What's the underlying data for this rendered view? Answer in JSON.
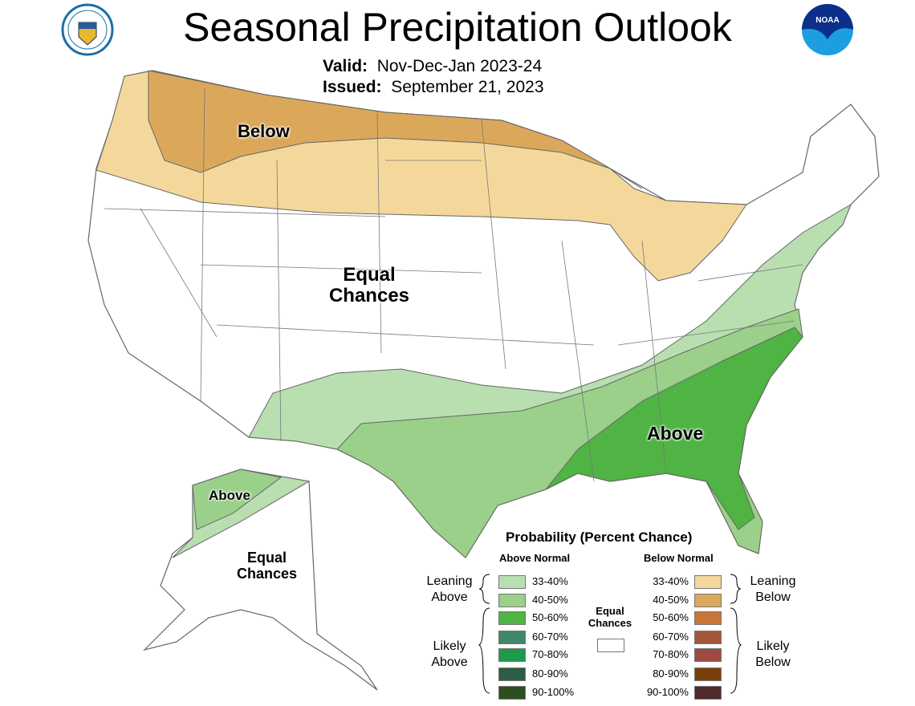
{
  "header": {
    "title": "Seasonal Precipitation Outlook",
    "valid_label": "Valid:",
    "valid_value": "Nov-Dec-Jan 2023-24",
    "issued_label": "Issued:",
    "issued_value": "September 21, 2023",
    "left_logo": "department-of-commerce-seal",
    "right_logo": "noaa-logo",
    "noaa_text": "NOAA"
  },
  "map": {
    "labels": {
      "below": "Below",
      "equal_1": "Equal",
      "equal_2": "Chances",
      "above": "Above",
      "ak_above": "Above",
      "ak_equal_1": "Equal",
      "ak_equal_2": "Chances"
    }
  },
  "legend": {
    "title": "Probability (Percent Chance)",
    "above_header": "Above Normal",
    "below_header": "Below Normal",
    "equal_1": "Equal",
    "equal_2": "Chances",
    "equal_color": "#ffffff",
    "leaning_above_1": "Leaning",
    "leaning_above_2": "Above",
    "likely_above_1": "Likely",
    "likely_above_2": "Above",
    "leaning_below_1": "Leaning",
    "leaning_below_2": "Below",
    "likely_below_1": "Likely",
    "likely_below_2": "Below",
    "above": [
      {
        "range": "33-40%",
        "color": "#b9dfb1"
      },
      {
        "range": "40-50%",
        "color": "#9bd08b"
      },
      {
        "range": "50-60%",
        "color": "#4fb443"
      },
      {
        "range": "60-70%",
        "color": "#3e876b"
      },
      {
        "range": "70-80%",
        "color": "#1e9a4c"
      },
      {
        "range": "80-90%",
        "color": "#2c5d45"
      },
      {
        "range": "90-100%",
        "color": "#2d4e1f"
      }
    ],
    "below": [
      {
        "range": "33-40%",
        "color": "#f4d89b"
      },
      {
        "range": "40-50%",
        "color": "#dba85b"
      },
      {
        "range": "50-60%",
        "color": "#c8753a"
      },
      {
        "range": "60-70%",
        "color": "#a6553a"
      },
      {
        "range": "70-80%",
        "color": "#9d4a42"
      },
      {
        "range": "80-90%",
        "color": "#7b3f0c"
      },
      {
        "range": "90-100%",
        "color": "#4e2b2c"
      }
    ]
  }
}
